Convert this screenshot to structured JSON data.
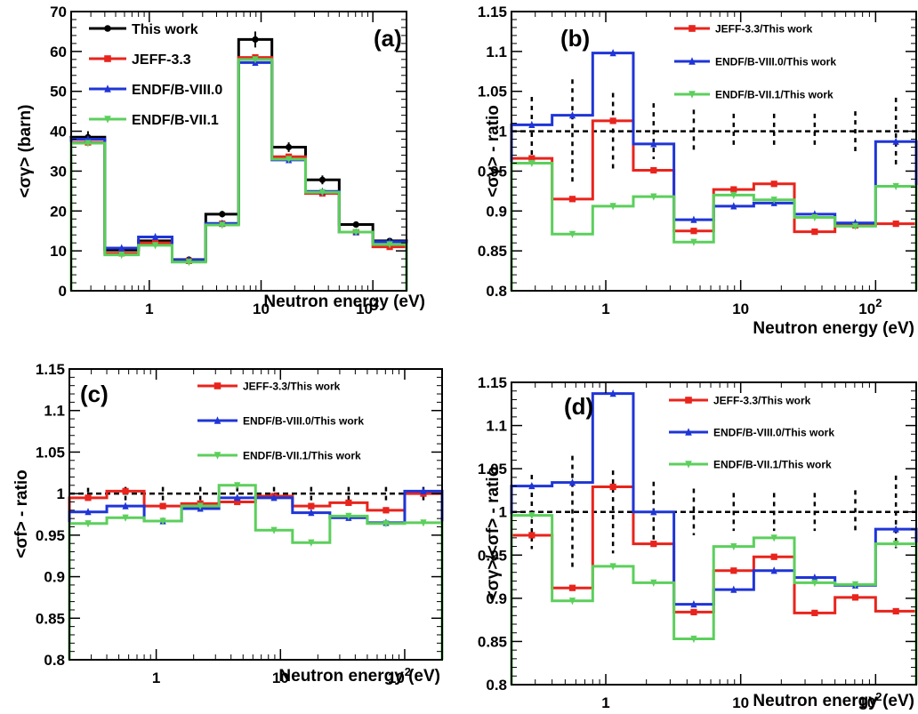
{
  "colors": {
    "this_work": "#000000",
    "jeff": "#e8241c",
    "endf8": "#1f35d6",
    "endf71": "#5ccf5c"
  },
  "chart_data": [
    {
      "type": "line",
      "panel_label": "(a)",
      "xlabel": "Neutron energy (eV)",
      "ylabel": "<σγ> (barn)",
      "xscale": "log",
      "ylim": [
        0,
        70
      ],
      "yticks": [
        "0",
        "10",
        "20",
        "30",
        "40",
        "50",
        "60",
        "70"
      ],
      "xticks": [
        "1",
        "10",
        "10^2"
      ],
      "bin_edges": [
        0.2,
        0.4,
        0.8,
        1.6,
        3.2,
        6.3,
        12.5,
        25,
        50,
        100,
        200
      ],
      "series": [
        {
          "name": "This work",
          "color_key": "this_work",
          "marker": "circle",
          "values": [
            38.5,
            10.2,
            12.5,
            7.8,
            19.2,
            63.0,
            36.0,
            27.8,
            16.6,
            12.5
          ],
          "errors": [
            1.5,
            0.6,
            0.8,
            0.5,
            0.8,
            2.0,
            1.2,
            1.1,
            0.7,
            0.6
          ]
        },
        {
          "name": "JEFF-3.3",
          "color_key": "jeff",
          "marker": "square",
          "values": [
            37.2,
            9.4,
            12.0,
            7.5,
            16.8,
            58.5,
            33.6,
            24.4,
            14.7,
            11.0
          ]
        },
        {
          "name": "ENDF/B-VIII.0",
          "color_key": "endf8",
          "marker": "triangle-up",
          "values": [
            38.0,
            10.7,
            13.5,
            7.7,
            16.9,
            57.2,
            32.8,
            24.9,
            14.7,
            12.3
          ]
        },
        {
          "name": "ENDF/B-VII.1",
          "color_key": "endf71",
          "marker": "triangle-down",
          "values": [
            37.0,
            9.0,
            11.4,
            7.2,
            16.5,
            58.0,
            33.0,
            24.7,
            14.7,
            11.6
          ]
        }
      ]
    },
    {
      "type": "line",
      "panel_label": "(b)",
      "xlabel": "Neutron energy (eV)",
      "ylabel": "<σγ> - ratio",
      "xscale": "log",
      "ylim": [
        0.8,
        1.15
      ],
      "yticks": [
        "0.8",
        "0.85",
        "0.9",
        "0.95",
        "1",
        "1.05",
        "1.1",
        "1.15"
      ],
      "xticks": [
        "1",
        "10",
        "10^2"
      ],
      "bin_edges": [
        0.2,
        0.4,
        0.8,
        1.6,
        3.2,
        6.3,
        12.5,
        25,
        50,
        100,
        200
      ],
      "reference_line": 1,
      "uncertainty_bands": [
        0.043,
        0.065,
        0.048,
        0.035,
        0.027,
        0.022,
        0.022,
        0.022,
        0.025,
        0.042
      ],
      "series": [
        {
          "name": "JEFF-3.3/This work",
          "color_key": "jeff",
          "marker": "square",
          "values": [
            0.966,
            0.915,
            1.013,
            0.951,
            0.875,
            0.927,
            0.934,
            0.874,
            0.882,
            0.884
          ]
        },
        {
          "name": "ENDF/B-VIII.0/This work",
          "color_key": "endf8",
          "marker": "triangle-up",
          "values": [
            1.008,
            1.02,
            1.098,
            0.984,
            0.889,
            0.906,
            0.91,
            0.896,
            0.885,
            0.987
          ]
        },
        {
          "name": "ENDF/B-VII.1/This work",
          "color_key": "endf71",
          "marker": "triangle-down",
          "values": [
            0.96,
            0.871,
            0.906,
            0.918,
            0.861,
            0.92,
            0.914,
            0.892,
            0.881,
            0.931
          ]
        }
      ]
    },
    {
      "type": "line",
      "panel_label": "(c)",
      "xlabel": "Neutron energy (eV)",
      "ylabel": "<σf> - ratio",
      "xscale": "log",
      "ylim": [
        0.8,
        1.15
      ],
      "yticks": [
        "0.8",
        "0.85",
        "0.9",
        "0.95",
        "1",
        "1.05",
        "1.1",
        "1.15"
      ],
      "xticks": [
        "1",
        "10",
        "10^2"
      ],
      "bin_edges": [
        0.2,
        0.4,
        0.8,
        1.6,
        3.2,
        6.3,
        12.5,
        25,
        50,
        100,
        200
      ],
      "reference_line": 1,
      "uncertainty_bands": [
        0.007,
        0.008,
        0.008,
        0.008,
        0.008,
        0.008,
        0.008,
        0.008,
        0.008,
        0.008
      ],
      "series": [
        {
          "name": "JEFF-3.3/This work",
          "color_key": "jeff",
          "marker": "square",
          "values": [
            0.995,
            1.003,
            0.985,
            0.988,
            0.99,
            0.997,
            0.985,
            0.989,
            0.98,
            1.0
          ]
        },
        {
          "name": "ENDF/B-VIII.0/This work",
          "color_key": "endf8",
          "marker": "triangle-up",
          "values": [
            0.978,
            0.985,
            0.967,
            0.982,
            0.995,
            0.995,
            0.977,
            0.971,
            0.965,
            1.003
          ]
        },
        {
          "name": "ENDF/B-VII.1/This work",
          "color_key": "endf71",
          "marker": "triangle-down",
          "values": [
            0.964,
            0.971,
            0.967,
            0.985,
            1.01,
            0.956,
            0.941,
            0.973,
            0.964,
            0.965
          ]
        }
      ]
    },
    {
      "type": "line",
      "panel_label": "(d)",
      "xlabel": "Neutron energy (eV)",
      "ylabel": "<σγ>/<σf> - ratio",
      "xscale": "log",
      "ylim": [
        0.8,
        1.15
      ],
      "yticks": [
        "0.8",
        "0.85",
        "0.9",
        "0.95",
        "1",
        "1.05",
        "1.1",
        "1.15"
      ],
      "xticks": [
        "1",
        "10",
        "10^2"
      ],
      "bin_edges": [
        0.2,
        0.4,
        0.8,
        1.6,
        3.2,
        6.3,
        12.5,
        25,
        50,
        100,
        200
      ],
      "reference_line": 1,
      "uncertainty_bands": [
        0.043,
        0.065,
        0.048,
        0.035,
        0.027,
        0.022,
        0.022,
        0.022,
        0.025,
        0.042
      ],
      "series": [
        {
          "name": "JEFF-3.3/This work",
          "color_key": "jeff",
          "marker": "square",
          "values": [
            0.973,
            0.912,
            1.029,
            0.963,
            0.884,
            0.932,
            0.948,
            0.883,
            0.901,
            0.885
          ]
        },
        {
          "name": "ENDF/B-VIII.0/This work",
          "color_key": "endf8",
          "marker": "triangle-up",
          "values": [
            1.03,
            1.034,
            1.137,
            1.0,
            0.893,
            0.91,
            0.932,
            0.924,
            0.915,
            0.98
          ]
        },
        {
          "name": "ENDF/B-VII.1/This work",
          "color_key": "endf71",
          "marker": "triangle-down",
          "values": [
            0.996,
            0.897,
            0.937,
            0.918,
            0.853,
            0.96,
            0.97,
            0.918,
            0.916,
            0.963
          ]
        }
      ]
    }
  ]
}
